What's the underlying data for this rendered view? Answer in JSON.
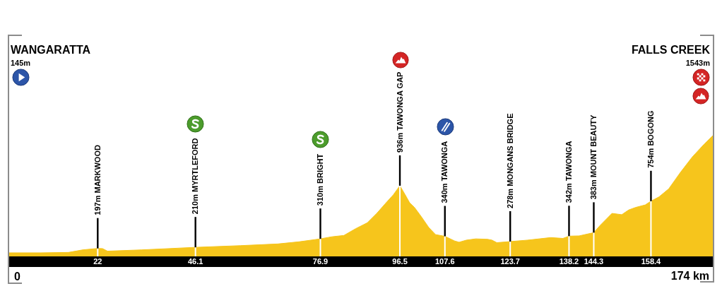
{
  "chart_data": {
    "type": "area",
    "color": "#f6c51c",
    "x": [
      0,
      8,
      14.8,
      18.3,
      22,
      23.2,
      24.4,
      32.8,
      46.1,
      57.2,
      66.4,
      71.6,
      76.9,
      79.8,
      82.7,
      85.6,
      88.5,
      90.8,
      93.1,
      94.9,
      96.5,
      97.8,
      98.9,
      100.1,
      101.8,
      103.6,
      105.3,
      107.6,
      110,
      111.1,
      112.9,
      115.2,
      118.1,
      119.2,
      120.4,
      123.7,
      128,
      133.7,
      136.7,
      138.2,
      140.7,
      144.3,
      145.9,
      148.8,
      151.2,
      152.9,
      154.6,
      157,
      158.4,
      160.4,
      162.8,
      165.7,
      168.6,
      171.5,
      174
    ],
    "values": [
      145,
      145,
      150,
      180,
      197,
      195,
      165,
      180,
      210,
      230,
      250,
      275,
      310,
      335,
      350,
      430,
      500,
      610,
      735,
      830,
      936,
      830,
      735,
      680,
      570,
      445,
      360,
      340,
      285,
      270,
      295,
      310,
      305,
      295,
      265,
      278,
      295,
      325,
      315,
      342,
      345,
      383,
      470,
      610,
      595,
      650,
      680,
      710,
      754,
      805,
      900,
      1095,
      1275,
      1425,
      1543
    ],
    "value_labels": [
      null,
      null,
      null,
      null,
      "197m MARKWOOD",
      null,
      null,
      null,
      "210m MYRTLEFORD",
      null,
      null,
      null,
      "310m BRIGHT",
      null,
      null,
      null,
      null,
      null,
      null,
      null,
      "936m TAWONGA GAP",
      null,
      null,
      null,
      null,
      null,
      null,
      "340m TAWONGA",
      null,
      null,
      null,
      null,
      null,
      null,
      null,
      "278m MONGANS BRIDGE",
      null,
      null,
      null,
      "342m TAWONGA",
      null,
      "383m MOUNT BEAUTY",
      null,
      null,
      null,
      null,
      null,
      null,
      "754m BOGONG",
      null,
      null,
      null,
      null,
      null,
      null
    ],
    "xlim": [
      0,
      174
    ],
    "xticks": [
      22,
      46.1,
      76.9,
      96.5,
      107.6,
      123.7,
      138.2,
      144.3,
      158.4
    ],
    "tick_labels": "x",
    "annotations": [
      "WANGARATTA",
      "145m",
      "FALLS CREEK",
      "1543m",
      "0",
      "174 km"
    ]
  }
}
